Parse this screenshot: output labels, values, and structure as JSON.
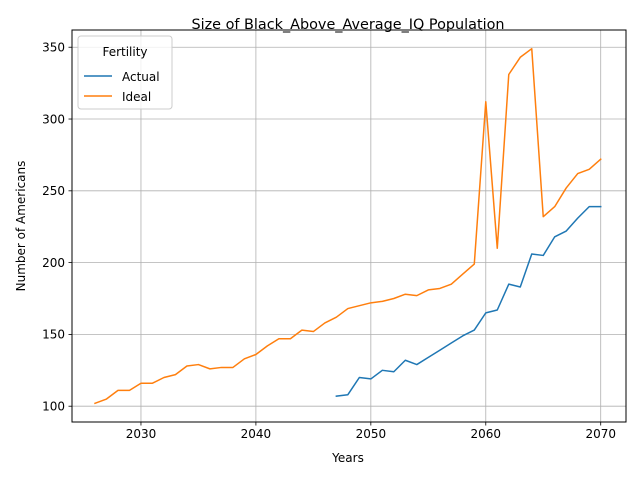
{
  "chart_data": {
    "type": "line",
    "title": "Size of Black_Above_Average_IQ Population",
    "xlabel": "Years",
    "ylabel": "Number of Americans",
    "xlim": [
      2024,
      2072.2
    ],
    "ylim": [
      89,
      362
    ],
    "xticks": [
      2030,
      2040,
      2050,
      2060,
      2070
    ],
    "yticks": [
      100,
      150,
      200,
      250,
      300,
      350
    ],
    "grid": true,
    "legend": {
      "title": "Fertility",
      "placement": "top-left"
    },
    "series": [
      {
        "name": "Actual",
        "color": "#1f77b4",
        "x": [
          2047,
          2048,
          2049,
          2050,
          2051,
          2052,
          2053,
          2054,
          2055,
          2056,
          2057,
          2058,
          2059,
          2060,
          2061,
          2062,
          2063,
          2064,
          2065,
          2066,
          2067,
          2068,
          2069,
          2070
        ],
        "y": [
          107,
          108,
          120,
          119,
          125,
          124,
          132,
          129,
          134,
          139,
          144,
          149,
          153,
          165,
          167,
          185,
          183,
          206,
          205,
          218,
          222,
          231,
          239,
          239
        ]
      },
      {
        "name": "Ideal",
        "color": "#ff7f0e",
        "x": [
          2026,
          2027,
          2028,
          2029,
          2030,
          2031,
          2032,
          2033,
          2034,
          2035,
          2036,
          2037,
          2038,
          2039,
          2040,
          2041,
          2042,
          2043,
          2044,
          2045,
          2046,
          2047,
          2048,
          2049,
          2050,
          2051,
          2052,
          2053,
          2054,
          2055,
          2056,
          2057,
          2058,
          2059,
          2060,
          2061,
          2062,
          2063,
          2064,
          2065,
          2066,
          2067,
          2068,
          2069,
          2070
        ],
        "y": [
          102,
          105,
          111,
          111,
          116,
          116,
          120,
          122,
          128,
          129,
          126,
          127,
          127,
          133,
          136,
          142,
          147,
          147,
          153,
          152,
          158,
          162,
          168,
          170,
          172,
          173,
          175,
          178,
          177,
          181,
          182,
          185,
          192,
          199,
          312,
          210,
          331,
          343,
          349,
          232,
          239,
          252,
          262,
          265,
          272
        ]
      }
    ]
  }
}
